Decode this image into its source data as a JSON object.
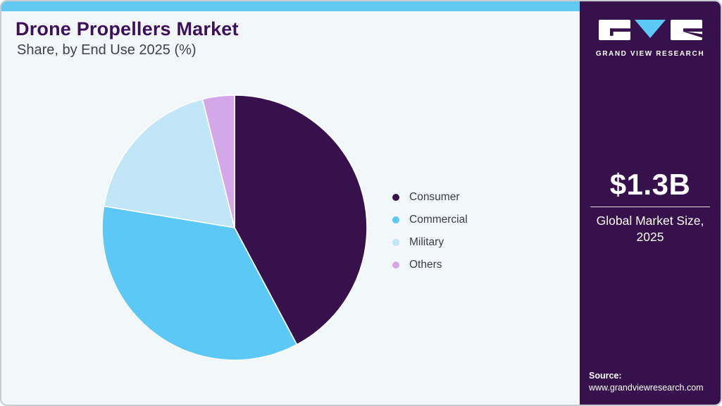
{
  "header": {
    "title": "Drone Propellers Market",
    "subtitle": "Share, by End Use 2025 (%)"
  },
  "chart_data": {
    "type": "pie",
    "title": "Drone Propellers Market Share, by End Use 2025 (%)",
    "unit": "%",
    "start_angle_deg": 0,
    "direction": "clockwise",
    "legend_position": "right",
    "slices": [
      {
        "label": "Consumer",
        "value": 42.2,
        "color": "#36114b"
      },
      {
        "label": "Commercial",
        "value": 35.4,
        "color": "#5bc8f5"
      },
      {
        "label": "Military",
        "value": 18.5,
        "color": "#c0e6f8"
      },
      {
        "label": "Others",
        "value": 3.9,
        "color": "#d4a7ea"
      }
    ]
  },
  "sidebar": {
    "brand": {
      "logo_text": "GRAND VIEW RESEARCH"
    },
    "market_size": {
      "value": "$1.3B",
      "label_line1": "Global Market Size,",
      "label_line2": "2025"
    },
    "source": {
      "label": "Source:",
      "url": "www.grandviewresearch.com"
    }
  },
  "colors": {
    "accent_bar": "#62c9f0",
    "sidebar_bg": "#36114b",
    "canvas_bg": "#f2f7fa",
    "logo_v": "#5bc8f5",
    "slice_gap": "#ffffff"
  }
}
